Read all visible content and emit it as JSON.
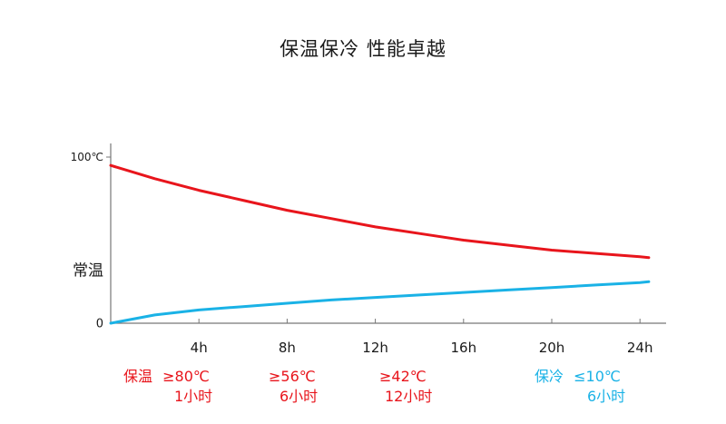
{
  "title": "保温保冷 性能卓越",
  "chart_data": {
    "type": "line",
    "xlabel": "",
    "ylabel": "",
    "x_ticks": [
      "4h",
      "8h",
      "12h",
      "16h",
      "20h",
      "24h"
    ],
    "x_tick_values": [
      4,
      8,
      12,
      16,
      20,
      24
    ],
    "xlim": [
      0,
      26
    ],
    "y_ticks": [
      {
        "label": "100℃",
        "value": 100
      },
      {
        "label": "常温",
        "value": 32
      },
      {
        "label": "0",
        "value": 0
      }
    ],
    "ylim": [
      0,
      100
    ],
    "series": [
      {
        "color": "#e8151c",
        "x": [
          0,
          2,
          4,
          6,
          8,
          10,
          12,
          14,
          16,
          18,
          20,
          22,
          24,
          24.4
        ],
        "values": [
          95,
          87,
          80,
          74,
          68,
          63,
          58,
          54,
          50,
          47,
          44,
          42,
          40,
          39.5
        ]
      },
      {
        "color": "#1ab2e6",
        "x": [
          0,
          2,
          4,
          6,
          8,
          10,
          12,
          14,
          16,
          18,
          20,
          22,
          24,
          24.4
        ],
        "values": [
          0,
          5,
          8,
          10,
          12,
          14,
          15.5,
          17,
          18.5,
          20,
          21.5,
          23,
          24.5,
          25
        ]
      }
    ]
  },
  "annotations": {
    "hot_label": "保温",
    "hot": [
      {
        "temp": "≥80℃",
        "time": "1小时"
      },
      {
        "temp": "≥56℃",
        "time": "6小时"
      },
      {
        "temp": "≥42℃",
        "time": "12小时"
      }
    ],
    "cold_label": "保冷",
    "cold": [
      {
        "temp": "≤10℃",
        "time": "6小时"
      }
    ]
  },
  "colors": {
    "hot": "#e8151c",
    "cold": "#1ab2e6",
    "axis": "#777777"
  }
}
